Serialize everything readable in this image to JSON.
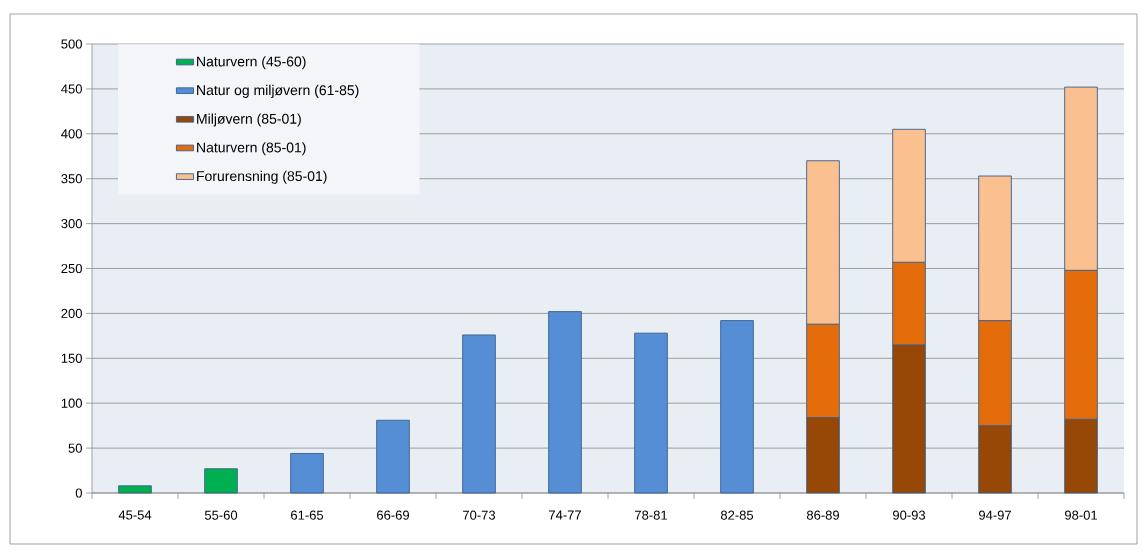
{
  "chart_data": {
    "type": "bar",
    "stacked": true,
    "categories": [
      "45-54",
      "55-60",
      "61-65",
      "66-69",
      "70-73",
      "74-77",
      "78-81",
      "82-85",
      "86-89",
      "90-93",
      "94-97",
      "98-01"
    ],
    "series": [
      {
        "name": "Naturvern (45-60)",
        "color": "#00b050",
        "values": [
          8,
          27,
          null,
          null,
          null,
          null,
          null,
          null,
          null,
          null,
          null,
          null
        ]
      },
      {
        "name": "Natur og miljøvern (61-85)",
        "color": "#558ed5",
        "values": [
          null,
          null,
          44,
          81,
          176,
          202,
          178,
          192,
          null,
          null,
          null,
          null
        ]
      },
      {
        "name": "Miljøvern (85-01)",
        "color": "#974706",
        "values": [
          null,
          null,
          null,
          null,
          null,
          null,
          null,
          null,
          84,
          165,
          75,
          82
        ]
      },
      {
        "name": "Naturvern (85-01)",
        "color": "#e46c0a",
        "values": [
          null,
          null,
          null,
          null,
          null,
          null,
          null,
          null,
          104,
          92,
          117,
          166
        ]
      },
      {
        "name": "Forurensning (85-01)",
        "color": "#fac090",
        "values": [
          null,
          null,
          null,
          null,
          null,
          null,
          null,
          null,
          182,
          148,
          161,
          204
        ]
      }
    ],
    "ylim": [
      0,
      500
    ],
    "yticks": [
      0,
      50,
      100,
      150,
      200,
      250,
      300,
      350,
      400,
      450,
      500
    ],
    "grid": "y",
    "legend": "top left"
  }
}
